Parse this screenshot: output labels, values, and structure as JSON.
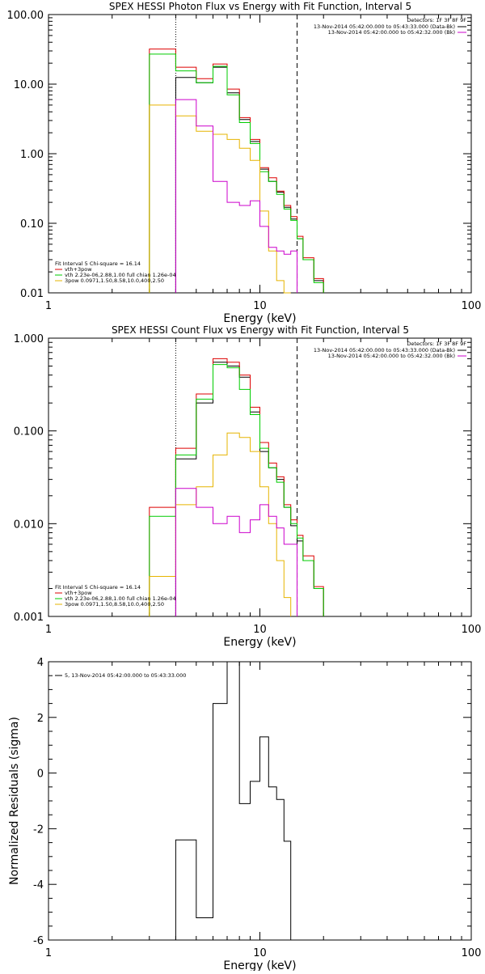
{
  "chart_data": [
    {
      "type": "line",
      "title": "SPEX HESSI Photon Flux vs Energy with Fit Function, Interval 5",
      "xlabel": "Energy (keV)",
      "ylabel": "",
      "xscale": "log",
      "yscale": "log",
      "xlim": [
        1,
        100
      ],
      "ylim": [
        0.01,
        100
      ],
      "xticks": [
        "1",
        "10",
        "100"
      ],
      "yticks": [
        "0.01",
        "0.10",
        "1.00",
        "10.00",
        "100.00"
      ],
      "vlines": [
        {
          "x": 4,
          "style": "dotted"
        },
        {
          "x": 15,
          "style": "dashed"
        }
      ],
      "legend_top": {
        "header": "Detectors: 1F 3F 8F 9F",
        "items": [
          {
            "text": "13-Nov-2014 05:42:00.000 to 05:43:33.000 (Data-Bk)",
            "color": "#000000"
          },
          {
            "text": "13-Nov-2014 05:42:00.000 to 05:42:32.000 (Bk)",
            "color": "#cc00cc"
          }
        ]
      },
      "legend_bottom": {
        "header": "Fit Interval 5   Chi-square = 16.14",
        "items": [
          {
            "text": "vth+3pow",
            "color": "#dd0000"
          },
          {
            "text": "vth 2.23e-06,2.88,1.00  full chian 1.26e-04",
            "color": "#00cc00"
          },
          {
            "text": "3pow 0.0971,1.50,8.58,10.0,400,2.50",
            "color": "#e6b400"
          }
        ]
      },
      "edges": [
        3.0,
        4.0,
        5.0,
        6.0,
        7.0,
        8.0,
        9.0,
        10.0,
        11.0,
        12.0,
        13.0,
        14.0,
        15.0,
        16.0,
        18.0,
        20.0
      ],
      "series": [
        {
          "color": "#000000",
          "values": [
            null,
            12.5,
            10.5,
            17.5,
            7.5,
            3.1,
            1.5,
            0.6,
            0.4,
            0.28,
            0.17,
            0.115,
            0.06,
            0.03,
            0.015
          ]
        },
        {
          "color": "#dd0000",
          "values": [
            32,
            17.5,
            12.0,
            19.5,
            8.5,
            3.3,
            1.6,
            0.63,
            0.45,
            0.29,
            0.18,
            0.125,
            0.065,
            0.032,
            0.016
          ]
        },
        {
          "color": "#00cc00",
          "values": [
            27,
            15.5,
            10.5,
            18.0,
            7.0,
            2.8,
            1.4,
            0.55,
            0.4,
            0.26,
            0.16,
            0.11,
            0.06,
            0.03,
            0.014
          ]
        },
        {
          "color": "#e6b400",
          "values": [
            5.0,
            3.5,
            2.1,
            1.9,
            1.6,
            1.2,
            0.8,
            0.15,
            0.04,
            0.015,
            0.005,
            null,
            null,
            null,
            null
          ]
        },
        {
          "color": "#cc00cc",
          "values": [
            null,
            6.0,
            2.5,
            0.4,
            0.2,
            0.18,
            0.21,
            0.09,
            0.045,
            0.04,
            0.036,
            0.04,
            null,
            null,
            null
          ]
        }
      ]
    },
    {
      "type": "line",
      "title": "SPEX HESSI Count Flux vs Energy with Fit Function, Interval 5",
      "xlabel": "Energy (keV)",
      "ylabel": "",
      "xscale": "log",
      "yscale": "log",
      "xlim": [
        1,
        100
      ],
      "ylim": [
        0.001,
        1
      ],
      "xticks": [
        "1",
        "10",
        "100"
      ],
      "yticks": [
        "0.001",
        "0.010",
        "0.100",
        "1.000"
      ],
      "vlines": [
        {
          "x": 4,
          "style": "dotted"
        },
        {
          "x": 15,
          "style": "dashed"
        }
      ],
      "legend_top": {
        "header": "Detectors: 1F 3F 8F 9F",
        "items": [
          {
            "text": "13-Nov-2014 05:42:00.000 to 05:43:33.000 (Data-Bk)",
            "color": "#000000"
          },
          {
            "text": "13-Nov-2014 05:42:00.000 to 05:42:32.000 (Bk)",
            "color": "#cc00cc"
          }
        ]
      },
      "legend_bottom": {
        "header": "Fit Interval 5   Chi-square = 16.14",
        "items": [
          {
            "text": "vth+3pow",
            "color": "#dd0000"
          },
          {
            "text": "vth 2.23e-06,2.88,1.00  full chian 1.26e-04",
            "color": "#00cc00"
          },
          {
            "text": "3pow 0.0971,1.50,8.58,10.0,400,2.50",
            "color": "#e6b400"
          }
        ]
      },
      "edges": [
        3.0,
        4.0,
        5.0,
        6.0,
        7.0,
        8.0,
        9.0,
        10.0,
        11.0,
        12.0,
        13.0,
        14.0,
        15.0,
        16.0,
        18.0,
        20.0
      ],
      "series": [
        {
          "color": "#000000",
          "values": [
            null,
            0.05,
            0.2,
            0.55,
            0.5,
            0.38,
            0.16,
            0.06,
            0.04,
            0.03,
            0.015,
            0.0095,
            0.0065,
            0.004,
            0.002
          ]
        },
        {
          "color": "#dd0000",
          "values": [
            0.015,
            0.065,
            0.25,
            0.6,
            0.55,
            0.4,
            0.18,
            0.075,
            0.045,
            0.032,
            0.016,
            0.011,
            0.0075,
            0.0045,
            0.0021
          ]
        },
        {
          "color": "#00cc00",
          "values": [
            0.012,
            0.055,
            0.22,
            0.52,
            0.48,
            0.28,
            0.15,
            0.065,
            0.04,
            0.028,
            0.015,
            0.01,
            0.007,
            0.004,
            0.002
          ]
        },
        {
          "color": "#e6b400",
          "values": [
            0.0027,
            0.016,
            0.025,
            0.055,
            0.095,
            0.085,
            0.06,
            0.025,
            0.01,
            0.004,
            0.0016,
            null,
            null,
            null,
            null
          ]
        },
        {
          "color": "#cc00cc",
          "values": [
            null,
            0.024,
            0.015,
            0.01,
            0.012,
            0.008,
            0.011,
            0.016,
            0.012,
            0.009,
            0.006,
            0.006,
            null,
            null,
            null
          ]
        }
      ]
    },
    {
      "type": "line",
      "title": "",
      "xlabel": "Energy (keV)",
      "ylabel": "Normalized Residuals (sigma)",
      "xscale": "log",
      "yscale": "linear",
      "xlim": [
        1,
        100
      ],
      "ylim": [
        -6,
        4
      ],
      "xticks": [
        "1",
        "10",
        "100"
      ],
      "yticks": [
        "-6",
        "-4",
        "-2",
        "0",
        "2",
        "4"
      ],
      "legend_items": [
        {
          "text": "5, 13-Nov-2014 05:42:00.000 to 05:43:33.000",
          "color": "#000000"
        }
      ],
      "edges": [
        4.0,
        5.0,
        6.0,
        7.0,
        8.0,
        9.0,
        10.0,
        11.0,
        12.0,
        13.0,
        14.0,
        15.0
      ],
      "series": [
        {
          "color": "#000000",
          "values": [
            -2.4,
            -5.2,
            2.5,
            4.5,
            -1.1,
            -0.3,
            1.3,
            -0.5,
            -0.95,
            -2.45,
            -6.0
          ]
        }
      ]
    }
  ]
}
